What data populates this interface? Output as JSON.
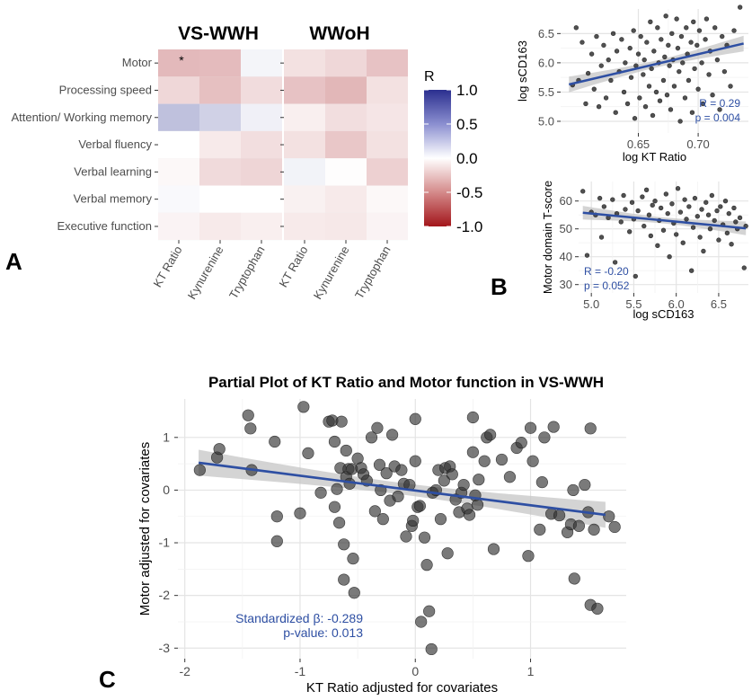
{
  "panel_letters": {
    "a": "A",
    "b": "B",
    "c": "C"
  },
  "chart_data": [
    {
      "id": "A",
      "type": "heatmap",
      "facets": [
        "VS-WWH",
        "WWoH"
      ],
      "rows": [
        "Motor",
        "Processing speed",
        "Attention/ Working memory",
        "Verbal fluency",
        "Verbal learning",
        "Verbal memory",
        "Executive function"
      ],
      "columns": [
        "KT Ratio",
        "Kynurenine",
        "Tryptophan"
      ],
      "values": {
        "VS-WWH": [
          [
            -0.3,
            -0.29,
            0.05
          ],
          [
            -0.17,
            -0.27,
            -0.15
          ],
          [
            0.3,
            0.22,
            0.07
          ],
          [
            0.0,
            -0.09,
            -0.14
          ],
          [
            -0.03,
            -0.16,
            -0.18
          ],
          [
            0.03,
            0.0,
            0.0
          ],
          [
            -0.05,
            -0.09,
            -0.07
          ]
        ],
        "WWoH": [
          [
            -0.13,
            -0.17,
            -0.26
          ],
          [
            -0.26,
            -0.31,
            -0.13
          ],
          [
            -0.07,
            -0.14,
            -0.11
          ],
          [
            -0.13,
            -0.24,
            -0.13
          ],
          [
            0.06,
            -0.01,
            -0.2
          ],
          [
            -0.06,
            -0.09,
            -0.03
          ],
          [
            -0.09,
            -0.1,
            -0.05
          ]
        ]
      },
      "significant_cells": [
        {
          "facet": "VS-WWH",
          "row": 0,
          "col": 0,
          "mark": "*"
        }
      ],
      "legend": {
        "title": "R",
        "ticks": [
          "1.0",
          "0.5",
          "0.0",
          "-0.5",
          "-1.0"
        ],
        "range": [
          -1,
          1
        ],
        "colors": {
          "low": "#a3161b",
          "mid": "#ffffff",
          "high": "#2b2f8f"
        }
      }
    },
    {
      "id": "B-top",
      "type": "scatter",
      "xlabel": "log KT Ratio",
      "ylabel": "log sCD163",
      "xlim": [
        0.585,
        0.742
      ],
      "ylim": [
        4.8,
        6.92
      ],
      "xticks": [
        "0.65",
        "0.70"
      ],
      "yticks": [
        "5.0",
        "5.5",
        "6.0",
        "6.5"
      ],
      "fit": {
        "x": [
          0.592,
          0.738
        ],
        "y": [
          5.63,
          6.33
        ]
      },
      "annotation": [
        "R = 0.29",
        "p = 0.004"
      ],
      "points": [
        [
          0.595,
          5.62
        ],
        [
          0.598,
          6.6
        ],
        [
          0.6,
          5.7
        ],
        [
          0.603,
          6.35
        ],
        [
          0.606,
          5.3
        ],
        [
          0.608,
          5.82
        ],
        [
          0.611,
          6.15
        ],
        [
          0.613,
          5.55
        ],
        [
          0.615,
          6.45
        ],
        [
          0.617,
          5.25
        ],
        [
          0.619,
          5.95
        ],
        [
          0.621,
          6.3
        ],
        [
          0.623,
          5.4
        ],
        [
          0.625,
          6.05
        ],
        [
          0.627,
          5.7
        ],
        [
          0.629,
          6.5
        ],
        [
          0.631,
          5.15
        ],
        [
          0.632,
          6.2
        ],
        [
          0.634,
          5.85
        ],
        [
          0.636,
          6.4
        ],
        [
          0.638,
          5.5
        ],
        [
          0.639,
          6.0
        ],
        [
          0.641,
          5.3
        ],
        [
          0.643,
          6.25
        ],
        [
          0.644,
          5.75
        ],
        [
          0.646,
          6.55
        ],
        [
          0.647,
          5.05
        ],
        [
          0.648,
          5.95
        ],
        [
          0.65,
          6.15
        ],
        [
          0.651,
          5.4
        ],
        [
          0.652,
          6.45
        ],
        [
          0.654,
          5.8
        ],
        [
          0.655,
          6.05
        ],
        [
          0.656,
          5.25
        ],
        [
          0.657,
          6.35
        ],
        [
          0.659,
          5.6
        ],
        [
          0.66,
          6.7
        ],
        [
          0.661,
          5.9
        ],
        [
          0.662,
          5.1
        ],
        [
          0.663,
          6.2
        ],
        [
          0.665,
          5.5
        ],
        [
          0.666,
          6.6
        ],
        [
          0.667,
          6.0
        ],
        [
          0.668,
          5.35
        ],
        [
          0.669,
          6.4
        ],
        [
          0.671,
          5.7
        ],
        [
          0.672,
          6.1
        ],
        [
          0.673,
          6.8
        ],
        [
          0.674,
          5.45
        ],
        [
          0.675,
          6.3
        ],
        [
          0.676,
          5.95
        ],
        [
          0.677,
          5.2
        ],
        [
          0.678,
          6.5
        ],
        [
          0.679,
          6.05
        ],
        [
          0.68,
          5.6
        ],
        [
          0.682,
          6.75
        ],
        [
          0.683,
          6.25
        ],
        [
          0.684,
          5.85
        ],
        [
          0.685,
          5.0
        ],
        [
          0.686,
          6.45
        ],
        [
          0.687,
          6.0
        ],
        [
          0.689,
          5.4
        ],
        [
          0.69,
          6.6
        ],
        [
          0.691,
          6.15
        ],
        [
          0.692,
          5.7
        ],
        [
          0.694,
          6.35
        ],
        [
          0.695,
          5.15
        ],
        [
          0.696,
          6.7
        ],
        [
          0.697,
          5.9
        ],
        [
          0.699,
          6.3
        ],
        [
          0.7,
          5.55
        ],
        [
          0.701,
          6.55
        ],
        [
          0.703,
          6.0
        ],
        [
          0.704,
          5.3
        ],
        [
          0.706,
          6.4
        ],
        [
          0.707,
          6.75
        ],
        [
          0.709,
          5.8
        ],
        [
          0.71,
          6.2
        ],
        [
          0.712,
          5.45
        ],
        [
          0.714,
          6.6
        ],
        [
          0.716,
          6.05
        ],
        [
          0.718,
          5.2
        ],
        [
          0.72,
          6.45
        ],
        [
          0.722,
          5.85
        ],
        [
          0.724,
          6.3
        ],
        [
          0.727,
          5.6
        ],
        [
          0.73,
          6.55
        ],
        [
          0.735,
          6.95
        ]
      ]
    },
    {
      "id": "B-bottom",
      "type": "scatter",
      "xlabel": "log sCD163",
      "ylabel": "Motor domain T-score",
      "xlim": [
        4.85,
        6.85
      ],
      "ylim": [
        27,
        67
      ],
      "xticks": [
        "5.0",
        "5.5",
        "6.0",
        "6.5"
      ],
      "yticks": [
        "30",
        "40",
        "50",
        "60"
      ],
      "fit": {
        "x": [
          4.9,
          6.82
        ],
        "y": [
          55.8,
          50.2
        ]
      },
      "annotation": [
        "R = -0.20",
        "p = 0.052"
      ],
      "points": [
        [
          4.9,
          63.5
        ],
        [
          4.95,
          40.5
        ],
        [
          5.0,
          56
        ],
        [
          5.05,
          55
        ],
        [
          5.1,
          61
        ],
        [
          5.12,
          47
        ],
        [
          5.15,
          58
        ],
        [
          5.2,
          54
        ],
        [
          5.25,
          60.5
        ],
        [
          5.28,
          38
        ],
        [
          5.3,
          55.5
        ],
        [
          5.35,
          52.5
        ],
        [
          5.38,
          62
        ],
        [
          5.4,
          57
        ],
        [
          5.45,
          49
        ],
        [
          5.48,
          59.5
        ],
        [
          5.5,
          53.5
        ],
        [
          5.52,
          33
        ],
        [
          5.55,
          56.5
        ],
        [
          5.6,
          61.5
        ],
        [
          5.62,
          51
        ],
        [
          5.65,
          64
        ],
        [
          5.68,
          55
        ],
        [
          5.7,
          47.5
        ],
        [
          5.72,
          58.5
        ],
        [
          5.75,
          60
        ],
        [
          5.78,
          44
        ],
        [
          5.8,
          53
        ],
        [
          5.82,
          57.5
        ],
        [
          5.85,
          49.5
        ],
        [
          5.88,
          62.5
        ],
        [
          5.9,
          55.5
        ],
        [
          5.92,
          40
        ],
        [
          5.95,
          59
        ],
        [
          5.97,
          52
        ],
        [
          6.0,
          48
        ],
        [
          6.02,
          64.5
        ],
        [
          6.05,
          56
        ],
        [
          6.08,
          45
        ],
        [
          6.1,
          60.5
        ],
        [
          6.12,
          53.5
        ],
        [
          6.15,
          58
        ],
        [
          6.18,
          35
        ],
        [
          6.2,
          50.5
        ],
        [
          6.22,
          61
        ],
        [
          6.25,
          54.5
        ],
        [
          6.28,
          47
        ],
        [
          6.3,
          57
        ],
        [
          6.32,
          42
        ],
        [
          6.35,
          59.5
        ],
        [
          6.38,
          55
        ],
        [
          6.4,
          50
        ],
        [
          6.42,
          62
        ],
        [
          6.45,
          53
        ],
        [
          6.48,
          56.5
        ],
        [
          6.5,
          46
        ],
        [
          6.52,
          58
        ],
        [
          6.55,
          51.5
        ],
        [
          6.58,
          60
        ],
        [
          6.6,
          48.5
        ],
        [
          6.62,
          55.5
        ],
        [
          6.65,
          44.5
        ],
        [
          6.68,
          57.5
        ],
        [
          6.7,
          52.5
        ],
        [
          6.72,
          50
        ],
        [
          6.75,
          54
        ],
        [
          6.8,
          36
        ],
        [
          6.82,
          51
        ]
      ]
    },
    {
      "id": "C",
      "type": "scatter",
      "title": "Partial Plot of KT Ratio and Motor function in VS-WWH",
      "xlabel": "KT Ratio adjusted for covariates",
      "ylabel": "Motor adjusted for covariates",
      "xlim": [
        -2.06,
        1.83
      ],
      "ylim": [
        -3.2,
        1.73
      ],
      "xticks": [
        "-2",
        "-1",
        "0",
        "1"
      ],
      "yticks": [
        "-3",
        "-2",
        "-1",
        "0",
        "1"
      ],
      "fit": {
        "x": [
          -1.88,
          1.65
        ],
        "y": [
          0.52,
          -0.47
        ]
      },
      "annotation": [
        "Standardized β: -0.289",
        "p-value: 0.013"
      ],
      "points": [
        [
          -1.87,
          0.38
        ],
        [
          -1.72,
          0.62
        ],
        [
          -1.7,
          0.78
        ],
        [
          -1.45,
          1.42
        ],
        [
          -1.43,
          1.17
        ],
        [
          -1.42,
          0.38
        ],
        [
          -1.22,
          0.92
        ],
        [
          -1.2,
          -0.5
        ],
        [
          -1.2,
          -0.97
        ],
        [
          -1.0,
          -0.44
        ],
        [
          -0.97,
          1.58
        ],
        [
          -0.93,
          0.7
        ],
        [
          -0.82,
          -0.05
        ],
        [
          -0.75,
          1.3
        ],
        [
          -0.72,
          1.32
        ],
        [
          -0.7,
          0.92
        ],
        [
          -0.7,
          -0.32
        ],
        [
          -0.68,
          0.02
        ],
        [
          -0.66,
          -0.62
        ],
        [
          -0.65,
          0.42
        ],
        [
          -0.64,
          1.3
        ],
        [
          -0.62,
          -1.03
        ],
        [
          -0.62,
          -1.7
        ],
        [
          -0.6,
          0.25
        ],
        [
          -0.6,
          0.75
        ],
        [
          -0.58,
          0.4
        ],
        [
          -0.57,
          0.12
        ],
        [
          -0.55,
          0.4
        ],
        [
          -0.54,
          -1.3
        ],
        [
          -0.53,
          -1.95
        ],
        [
          -0.5,
          0.6
        ],
        [
          -0.47,
          0.42
        ],
        [
          -0.45,
          0.3
        ],
        [
          -0.42,
          0.18
        ],
        [
          -0.38,
          1.0
        ],
        [
          -0.35,
          -0.4
        ],
        [
          -0.33,
          1.18
        ],
        [
          -0.31,
          0.48
        ],
        [
          -0.3,
          0.0
        ],
        [
          -0.28,
          -0.55
        ],
        [
          -0.25,
          0.32
        ],
        [
          -0.22,
          -0.2
        ],
        [
          -0.2,
          1.05
        ],
        [
          -0.18,
          0.45
        ],
        [
          -0.15,
          -0.12
        ],
        [
          -0.12,
          0.38
        ],
        [
          -0.1,
          0.12
        ],
        [
          -0.08,
          -0.88
        ],
        [
          -0.05,
          0.1
        ],
        [
          -0.03,
          -0.68
        ],
        [
          -0.02,
          -0.58
        ],
        [
          0.0,
          1.35
        ],
        [
          0.0,
          0.55
        ],
        [
          0.02,
          -0.32
        ],
        [
          0.04,
          -0.3
        ],
        [
          0.05,
          -2.5
        ],
        [
          0.08,
          -0.9
        ],
        [
          0.1,
          -1.42
        ],
        [
          0.12,
          -2.3
        ],
        [
          0.14,
          -3.02
        ],
        [
          0.15,
          -0.05
        ],
        [
          0.18,
          0.0
        ],
        [
          0.2,
          0.38
        ],
        [
          0.22,
          -0.55
        ],
        [
          0.25,
          0.18
        ],
        [
          0.26,
          0.42
        ],
        [
          0.28,
          -1.2
        ],
        [
          0.3,
          0.45
        ],
        [
          0.32,
          0.3
        ],
        [
          0.35,
          -0.18
        ],
        [
          0.38,
          -0.42
        ],
        [
          0.4,
          -0.05
        ],
        [
          0.42,
          0.1
        ],
        [
          0.45,
          -0.35
        ],
        [
          0.47,
          -0.47
        ],
        [
          0.5,
          0.72
        ],
        [
          0.5,
          1.38
        ],
        [
          0.52,
          -0.1
        ],
        [
          0.54,
          -0.28
        ],
        [
          0.55,
          0.2
        ],
        [
          0.6,
          0.55
        ],
        [
          0.62,
          1.0
        ],
        [
          0.65,
          1.05
        ],
        [
          0.68,
          -1.12
        ],
        [
          0.75,
          0.58
        ],
        [
          0.82,
          0.25
        ],
        [
          0.88,
          0.8
        ],
        [
          0.92,
          0.9
        ],
        [
          0.98,
          -1.25
        ],
        [
          1.0,
          1.18
        ],
        [
          1.02,
          0.55
        ],
        [
          1.08,
          -0.75
        ],
        [
          1.1,
          0.15
        ],
        [
          1.12,
          1.0
        ],
        [
          1.18,
          -0.45
        ],
        [
          1.2,
          1.2
        ],
        [
          1.25,
          -0.48
        ],
        [
          1.32,
          -0.8
        ],
        [
          1.35,
          -0.65
        ],
        [
          1.37,
          0.0
        ],
        [
          1.38,
          -1.68
        ],
        [
          1.42,
          -0.68
        ],
        [
          1.47,
          0.1
        ],
        [
          1.5,
          -0.42
        ],
        [
          1.52,
          1.17
        ],
        [
          1.52,
          -2.18
        ],
        [
          1.55,
          -0.75
        ],
        [
          1.58,
          -2.25
        ],
        [
          1.68,
          -0.5
        ],
        [
          1.73,
          -0.7
        ]
      ]
    }
  ]
}
